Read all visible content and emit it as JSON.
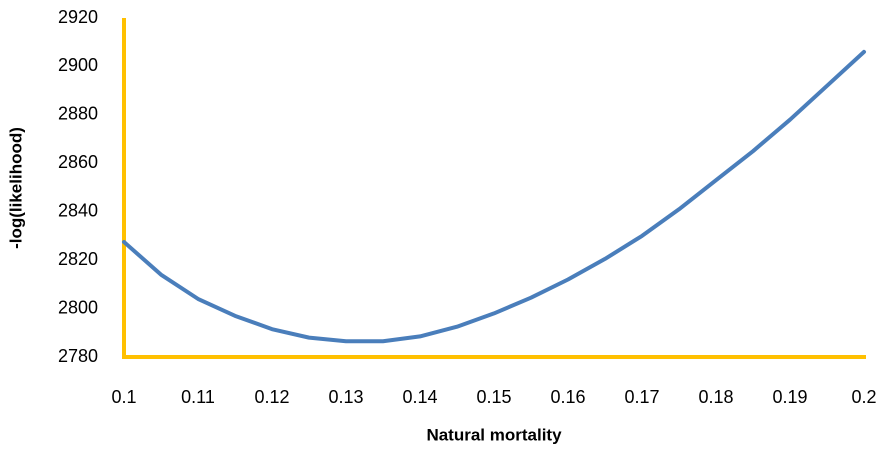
{
  "chart_data": {
    "type": "line",
    "x_label": "Natural mortality",
    "y_label": "-log(likelihood)",
    "x": [
      0.1,
      0.105,
      0.11,
      0.115,
      0.12,
      0.125,
      0.13,
      0.135,
      0.14,
      0.145,
      0.15,
      0.155,
      0.16,
      0.165,
      0.17,
      0.175,
      0.18,
      0.185,
      0.19,
      0.195,
      0.2
    ],
    "series": [
      {
        "color": "#4a7ebb",
        "values": [
          2827.5,
          2814,
          2804,
          2797,
          2791.5,
          2788,
          2786.5,
          2786.5,
          2788.5,
          2792.5,
          2798,
          2804.5,
          2812,
          2820.5,
          2830,
          2841,
          2853,
          2865,
          2878,
          2892,
          2906
        ]
      }
    ],
    "xlim": [
      0.1,
      0.2
    ],
    "xticks": [
      0.1,
      0.11,
      0.12,
      0.13,
      0.14,
      0.15,
      0.16,
      0.17,
      0.18,
      0.19,
      0.2
    ],
    "ylim": [
      2780,
      2920
    ],
    "yticks": [
      2780,
      2800,
      2820,
      2840,
      2860,
      2880,
      2900,
      2920
    ],
    "axis_color": "#ffc000",
    "grid": false
  }
}
